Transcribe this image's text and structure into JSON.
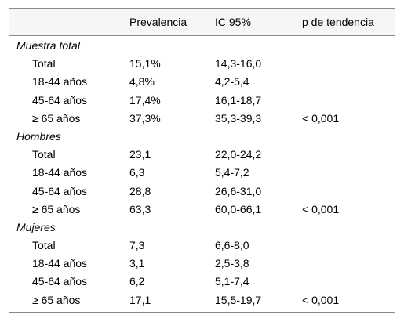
{
  "table": {
    "columns": [
      "",
      "Prevalencia",
      "IC 95%",
      "p de tendencia"
    ],
    "groups": [
      {
        "title": "Muestra total",
        "rows": [
          {
            "label": "Total",
            "prevalencia": "15,1%",
            "ic": "14,3-16,0",
            "p": ""
          },
          {
            "label": "18-44 años",
            "prevalencia": "4,8%",
            "ic": "4,2-5,4",
            "p": ""
          },
          {
            "label": "45-64 años",
            "prevalencia": "17,4%",
            "ic": "16,1-18,7",
            "p": ""
          },
          {
            "label": "≥ 65 años",
            "prevalencia": "37,3%",
            "ic": "35,3-39,3",
            "p": "< 0,001"
          }
        ]
      },
      {
        "title": "Hombres",
        "rows": [
          {
            "label": "Total",
            "prevalencia": "23,1",
            "ic": "22,0-24,2",
            "p": ""
          },
          {
            "label": "18-44 años",
            "prevalencia": "6,3",
            "ic": "5,4-7,2",
            "p": ""
          },
          {
            "label": "45-64 años",
            "prevalencia": "28,8",
            "ic": "26,6-31,0",
            "p": ""
          },
          {
            "label": "≥ 65 años",
            "prevalencia": "63,3",
            "ic": "60,0-66,1",
            "p": "< 0,001"
          }
        ]
      },
      {
        "title": "Mujeres",
        "rows": [
          {
            "label": "Total",
            "prevalencia": "7,3",
            "ic": "6,6-8,0",
            "p": ""
          },
          {
            "label": "18-44 años",
            "prevalencia": "3,1",
            "ic": "2,5-3,8",
            "p": ""
          },
          {
            "label": "45-64 años",
            "prevalencia": "6,2",
            "ic": "5,1-7,4",
            "p": ""
          },
          {
            "label": "≥ 65 años",
            "prevalencia": "17,1",
            "ic": "15,5-19,7",
            "p": "< 0,001"
          }
        ]
      }
    ]
  }
}
